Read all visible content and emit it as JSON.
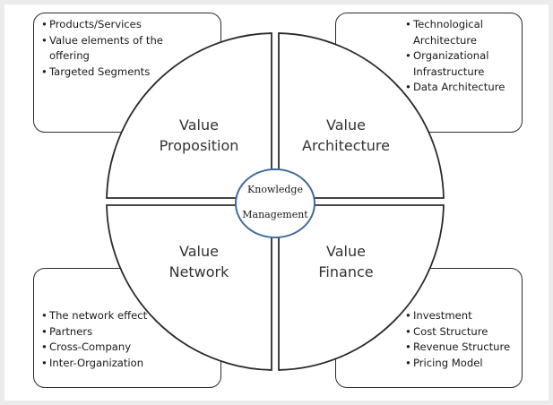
{
  "quadrants": {
    "top_left": {
      "line1": "Value",
      "line2": "Proposition"
    },
    "top_right": {
      "line1": "Value",
      "line2": "Architecture"
    },
    "bottom_left": {
      "line1": "Value",
      "line2": "Network"
    },
    "bottom_right": {
      "line1": "Value",
      "line2": "Finance"
    }
  },
  "center": {
    "line1": "Knowledge",
    "line2": "Management"
  },
  "boxes": {
    "top_left": [
      "Products/Services",
      "Value elements of the offering",
      "Targeted Segments"
    ],
    "top_right": [
      "Technological Architecture",
      "Organizational Infrastructure",
      "Data Architecture"
    ],
    "bottom_left": [
      "The network effect",
      "Partners",
      "Cross-Company",
      "Inter-Organization"
    ],
    "bottom_right": [
      "Investment",
      "Cost Structure",
      "Revenue Structure",
      "Pricing Model"
    ]
  },
  "colors": {
    "outline": "#2b2b2b",
    "center_ring": "#3f6a9a",
    "background": "#ffffff"
  }
}
